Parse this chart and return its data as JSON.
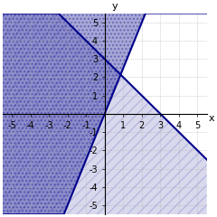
{
  "title": "",
  "xlim": [
    -5.5,
    5.5
  ],
  "ylim": [
    -5.5,
    5.5
  ],
  "xticks": [
    -5,
    -4,
    -3,
    -2,
    -1,
    1,
    2,
    3,
    4,
    5
  ],
  "yticks": [
    -5,
    -4,
    -3,
    -2,
    -1,
    1,
    2,
    3,
    4,
    5
  ],
  "line1_slope": -1,
  "line1_intercept": 3,
  "line2_slope": 2.5,
  "line2_intercept": 0,
  "line_color": "#00008B",
  "fill_color": "#00008B",
  "bg_color": "#ffffff",
  "grid_color": "#b0b0b0",
  "tick_fontsize": 7
}
